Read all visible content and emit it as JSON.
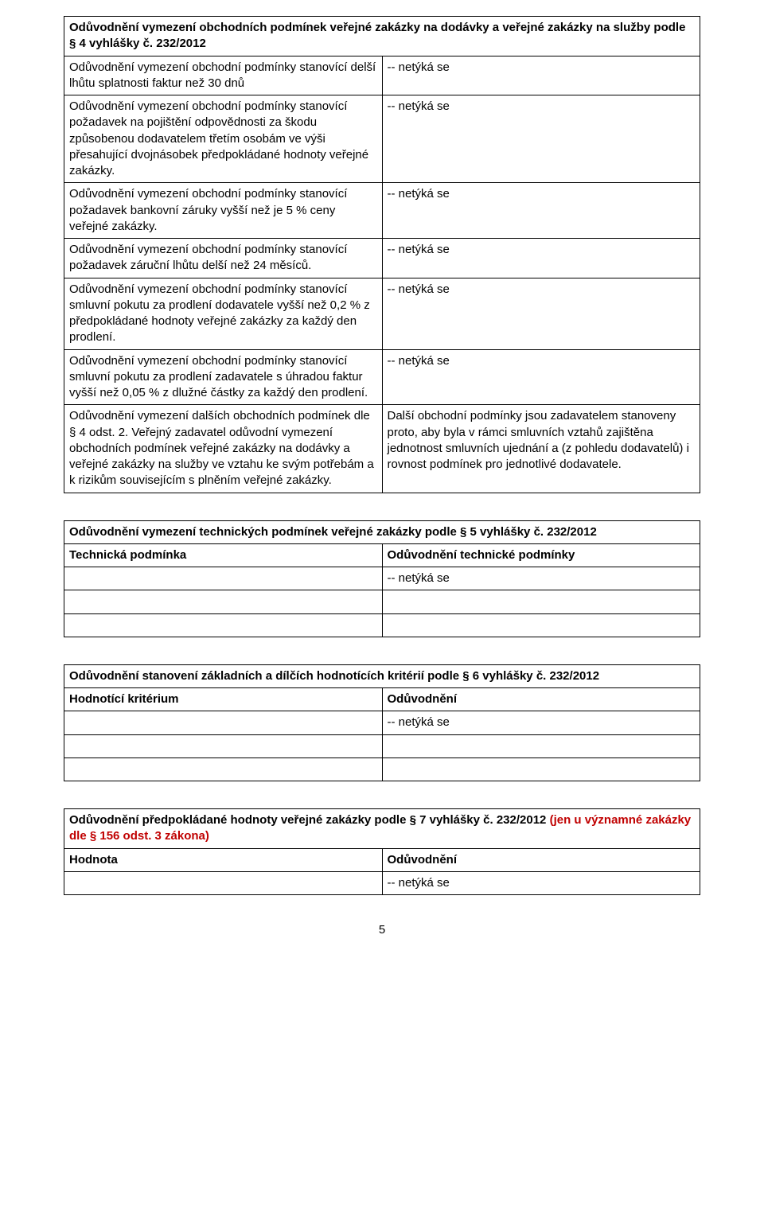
{
  "page_number": "5",
  "tables": {
    "t1": {
      "title": "Odůvodnění vymezení obchodních podmínek veřejné zakázky na dodávky a veřejné zakázky na služby podle § 4 vyhlášky č. 232/2012",
      "rows": [
        {
          "left": "Odůvodnění vymezení obchodní podmínky stanovící delší lhůtu splatnosti faktur než 30 dnů",
          "right": "-- netýká se"
        },
        {
          "left": "Odůvodnění vymezení obchodní podmínky stanovící požadavek na pojištění odpovědnosti za škodu způsobenou dodavatelem třetím osobám ve výši přesahující dvojnásobek předpokládané hodnoty veřejné zakázky.",
          "right": "-- netýká se"
        },
        {
          "left": "Odůvodnění vymezení obchodní podmínky stanovící požadavek bankovní záruky vyšší než je 5 % ceny veřejné zakázky.",
          "right": "-- netýká se"
        },
        {
          "left": "Odůvodnění vymezení obchodní podmínky stanovící požadavek záruční lhůtu delší než 24 měsíců.",
          "right": "-- netýká se"
        },
        {
          "left": "Odůvodnění vymezení obchodní podmínky stanovící smluvní pokutu za prodlení dodavatele vyšší než 0,2 % z předpokládané hodnoty veřejné zakázky za každý den prodlení.",
          "right": "-- netýká se"
        },
        {
          "left": "Odůvodnění vymezení obchodní podmínky stanovící smluvní pokutu za prodlení zadavatele s úhradou faktur vyšší než 0,05 % z dlužné částky za každý den prodlení.",
          "right": "-- netýká se"
        },
        {
          "left": "Odůvodnění vymezení dalších obchodních podmínek dle § 4 odst. 2. Veřejný zadavatel odůvodní vymezení obchodních podmínek veřejné zakázky na dodávky a veřejné zakázky na služby ve vztahu ke svým potřebám a k rizikům souvisejícím s plněním veřejné zakázky.",
          "right": "Další obchodní podmínky jsou zadavatelem stanoveny proto, aby byla v rámci smluvních vztahů zajištěna jednotnost smluvních ujednání a (z pohledu dodavatelů) i rovnost podmínek pro jednotlivé dodavatele."
        }
      ]
    },
    "t2": {
      "title": "Odůvodnění vymezení technických podmínek veřejné zakázky podle § 5 vyhlášky č. 232/2012",
      "header_left": "Technická podmínka",
      "header_right": "Odůvodnění technické podmínky",
      "first_right": "-- netýká se"
    },
    "t3": {
      "title": "Odůvodnění stanovení základních a dílčích hodnotících kritérií podle § 6 vyhlášky č. 232/2012",
      "header_left": "Hodnotící kritérium",
      "header_right": "Odůvodnění",
      "first_right": "-- netýká se"
    },
    "t4": {
      "title_black": "Odůvodnění předpokládané hodnoty veřejné zakázky podle § 7 vyhlášky č. 232/2012 ",
      "title_red": "(jen u významné zakázky dle § 156 odst. 3 zákona)",
      "header_left": "Hodnota",
      "header_right": "Odůvodnění",
      "first_right": "-- netýká se"
    }
  }
}
